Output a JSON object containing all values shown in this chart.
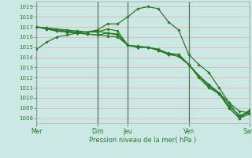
{
  "title": "",
  "xlabel": "Pression niveau de la mer( hPa )",
  "ylabel": "",
  "bg_color": "#cce8e4",
  "plot_bg_color": "#cce8e4",
  "grid_color": "#e8a0a0",
  "line_color": "#2a7a2a",
  "marker_color": "#2a7a2a",
  "day_line_color": "#557755",
  "tick_color": "#2a7a2a",
  "label_color": "#2a7a2a",
  "ylim": [
    1007.5,
    1019.5
  ],
  "yticks": [
    1008,
    1009,
    1010,
    1011,
    1012,
    1013,
    1014,
    1015,
    1016,
    1017,
    1018,
    1019
  ],
  "xtick_labels": [
    "Mer",
    "",
    "",
    "Dim",
    "Jeu",
    "",
    "",
    "Ven",
    "",
    "",
    "Sam"
  ],
  "xtick_positions": [
    0,
    2,
    4,
    6,
    9,
    11,
    13,
    15,
    17,
    19,
    21
  ],
  "day_vlines": [
    0,
    6,
    9,
    15,
    21
  ],
  "xlim": [
    0,
    21
  ],
  "series": [
    [
      1014.8,
      1015.5,
      1016.0,
      1016.2,
      1016.4,
      1016.5,
      1016.6,
      1016.4,
      1016.2,
      1015.2,
      1015.0,
      1015.0,
      1014.8,
      1014.4,
      1014.3,
      1013.3,
      1012.2,
      1011.3,
      1010.5,
      1009.0,
      1008.0,
      1008.7
    ],
    [
      1017.0,
      1016.8,
      1016.6,
      1016.5,
      1016.4,
      1016.3,
      1016.2,
      1016.1,
      1016.0,
      1015.2,
      1015.0,
      1015.0,
      1014.7,
      1014.3,
      1014.1,
      1013.3,
      1012.2,
      1011.1,
      1010.5,
      1009.5,
      1008.7,
      1008.5
    ],
    [
      1017.0,
      1016.8,
      1016.6,
      1016.5,
      1016.4,
      1016.3,
      1016.2,
      1016.4,
      1016.3,
      1015.2,
      1015.1,
      1015.0,
      1014.7,
      1014.3,
      1014.3,
      1013.3,
      1012.2,
      1011.3,
      1010.5,
      1009.2,
      1008.3,
      1008.5
    ],
    [
      1017.0,
      1016.9,
      1016.7,
      1016.6,
      1016.5,
      1016.5,
      1016.5,
      1016.8,
      1016.6,
      1015.2,
      1015.0,
      1015.0,
      1014.7,
      1014.3,
      1014.1,
      1013.3,
      1012.0,
      1011.0,
      1010.4,
      1009.0,
      1008.0,
      1008.4
    ],
    [
      1017.0,
      1016.9,
      1016.8,
      1016.7,
      1016.6,
      1016.5,
      1016.7,
      1017.3,
      1017.3,
      1018.0,
      1018.8,
      1019.0,
      1018.8,
      1017.5,
      1016.7,
      1014.3,
      1013.3,
      1012.5,
      1011.0,
      1009.5,
      1008.1,
      1008.8
    ]
  ]
}
